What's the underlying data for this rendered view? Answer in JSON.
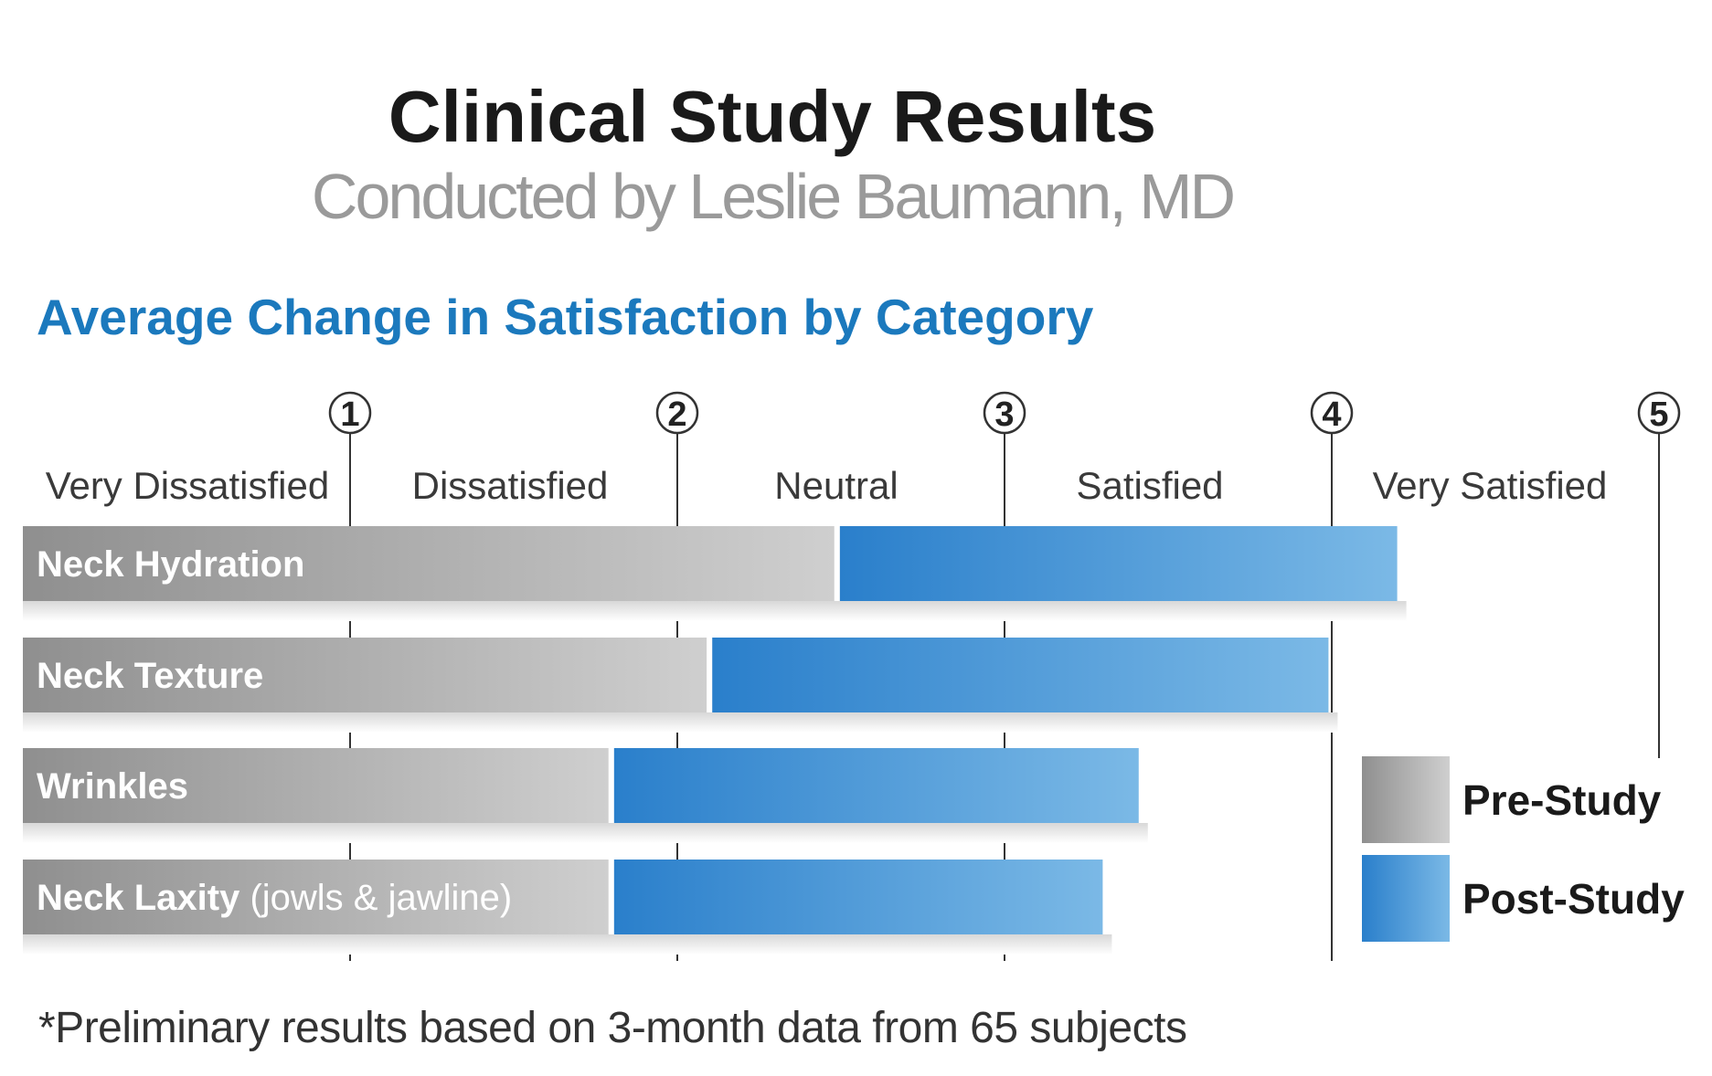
{
  "title": "Clinical Study Results",
  "subtitle": "Conducted by Leslie Baumann, MD",
  "footnote": "*Preliminary results based on 3-month data from 65 subjects",
  "chart_data": {
    "type": "bar",
    "orientation": "horizontal",
    "stacked_comparison": true,
    "title": "Average Change in Satisfaction by Category",
    "xlim": [
      0,
      5
    ],
    "ticks": [
      "1",
      "2",
      "3",
      "4",
      "5"
    ],
    "scale_labels": [
      "Very Dissatisfied",
      "Dissatisfied",
      "Neutral",
      "Satisfied",
      "Very Satisfied"
    ],
    "categories": [
      {
        "label": "Neck Hydration",
        "suffix": ""
      },
      {
        "label": "Neck Texture",
        "suffix": ""
      },
      {
        "label": "Wrinkles",
        "suffix": ""
      },
      {
        "label": "Neck Laxity",
        "suffix": "(jowls & jawline)"
      }
    ],
    "series": [
      {
        "name": "Pre-Study",
        "values": [
          2.48,
          2.09,
          1.79,
          1.79
        ]
      },
      {
        "name": "Post-Study",
        "values": [
          4.2,
          3.99,
          3.41,
          3.3
        ]
      }
    ],
    "legend": [
      "Pre-Study",
      "Post-Study"
    ],
    "legend_position": "bottom-right",
    "colors": {
      "pre_dark": "#8f8f8f",
      "pre_light": "#cfcfcf",
      "post_dark": "#2a7fcb",
      "post_light": "#7bb9e6",
      "heading": "#1b79bd"
    }
  }
}
